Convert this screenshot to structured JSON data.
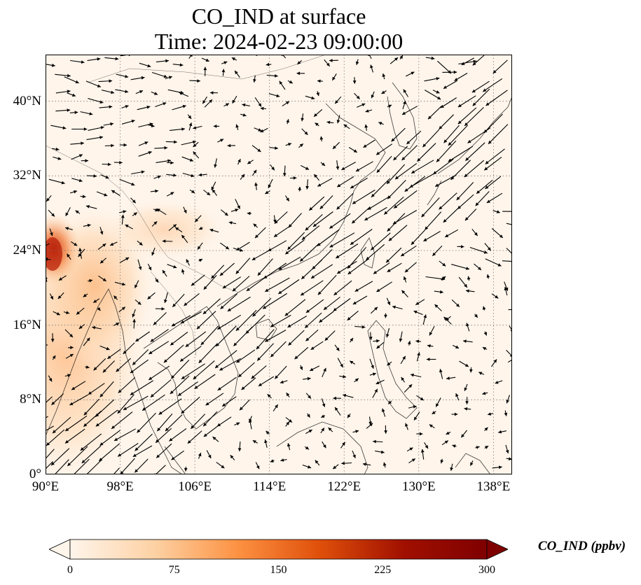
{
  "title": {
    "line1": "CO_IND at surface",
    "line2": "Time: 2024-02-23 09:00:00"
  },
  "map": {
    "lon_range": [
      90,
      140
    ],
    "lat_range": [
      0,
      45
    ],
    "lon_ticks": [
      {
        "value": 90,
        "label": "90°E"
      },
      {
        "value": 98,
        "label": "98°E"
      },
      {
        "value": 106,
        "label": "106°E"
      },
      {
        "value": 114,
        "label": "114°E"
      },
      {
        "value": 122,
        "label": "122°E"
      },
      {
        "value": 130,
        "label": "130°E"
      },
      {
        "value": 138,
        "label": "138°E"
      }
    ],
    "lat_ticks": [
      {
        "value": 0,
        "label": "0°"
      },
      {
        "value": 8,
        "label": "8°N"
      },
      {
        "value": 16,
        "label": "16°N"
      },
      {
        "value": 24,
        "label": "24°N"
      },
      {
        "value": 32,
        "label": "32°N"
      },
      {
        "value": 40,
        "label": "40°N"
      }
    ],
    "gridlines": true,
    "background_color": "#fff5eb",
    "field_hotspots": [
      {
        "lon": 91.0,
        "lat": 24.5,
        "value": 220
      },
      {
        "lon": 90.5,
        "lat": 26.5,
        "value": 160
      },
      {
        "lon": 92.5,
        "lat": 15.5,
        "value": 70
      },
      {
        "lon": 95.0,
        "lat": 19.5,
        "value": 55
      },
      {
        "lon": 103.0,
        "lat": 25.5,
        "value": 40
      },
      {
        "lon": 98.0,
        "lat": 27.0,
        "value": 35
      }
    ]
  },
  "colorbar": {
    "label": "CO_IND (ppbv)",
    "min": 0,
    "max": 300,
    "ticks": [
      {
        "value": 0,
        "label": "0"
      },
      {
        "value": 75,
        "label": "75"
      },
      {
        "value": 150,
        "label": "150"
      },
      {
        "value": 225,
        "label": "225"
      },
      {
        "value": 300,
        "label": "300"
      }
    ],
    "colors": [
      "#fff5eb",
      "#fdd2a5",
      "#fd9243",
      "#df4f0a",
      "#a11000",
      "#7f0000"
    ]
  }
}
